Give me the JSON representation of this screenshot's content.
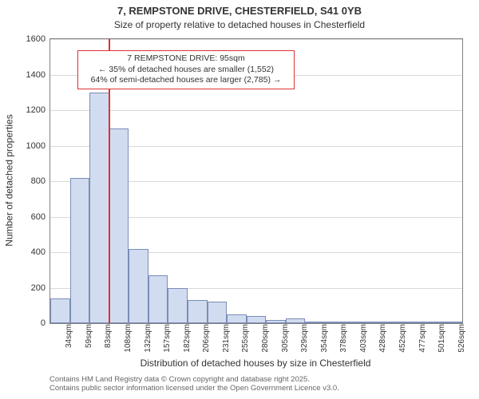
{
  "title1": "7, REMPSTONE DRIVE, CHESTERFIELD, S41 0YB",
  "title2": "Size of property relative to detached houses in Chesterfield",
  "y_label": "Number of detached properties",
  "x_label": "Distribution of detached houses by size in Chesterfield",
  "footer_line1": "Contains HM Land Registry data © Crown copyright and database right 2025.",
  "footer_line2": "Contains public sector information licensed under the Open Government Licence v3.0.",
  "chart": {
    "type": "histogram",
    "ylim": [
      0,
      1600
    ],
    "ytick_step": 200,
    "bar_fill": "#d1dcf0",
    "bar_stroke": "#7a8db8",
    "grid_color": "#d9d9d9",
    "refline_color": "#dd3333",
    "refline_value": 95,
    "x_start": 22,
    "x_bin_width": 24.5,
    "x_tick_labels": [
      "34sqm",
      "59sqm",
      "83sqm",
      "108sqm",
      "132sqm",
      "157sqm",
      "182sqm",
      "206sqm",
      "231sqm",
      "255sqm",
      "280sqm",
      "305sqm",
      "329sqm",
      "354sqm",
      "378sqm",
      "403sqm",
      "428sqm",
      "452sqm",
      "477sqm",
      "501sqm",
      "526sqm"
    ],
    "bars": [
      140,
      820,
      1300,
      1095,
      420,
      270,
      200,
      130,
      120,
      50,
      40,
      20,
      25,
      10,
      8,
      5,
      5,
      3,
      2,
      2,
      2
    ],
    "annotation": {
      "line1": "7 REMPSTONE DRIVE: 95sqm",
      "line2": "← 35% of detached houses are smaller (1,552)",
      "line3": "64% of semi-detached houses are larger (2,785) →"
    }
  }
}
